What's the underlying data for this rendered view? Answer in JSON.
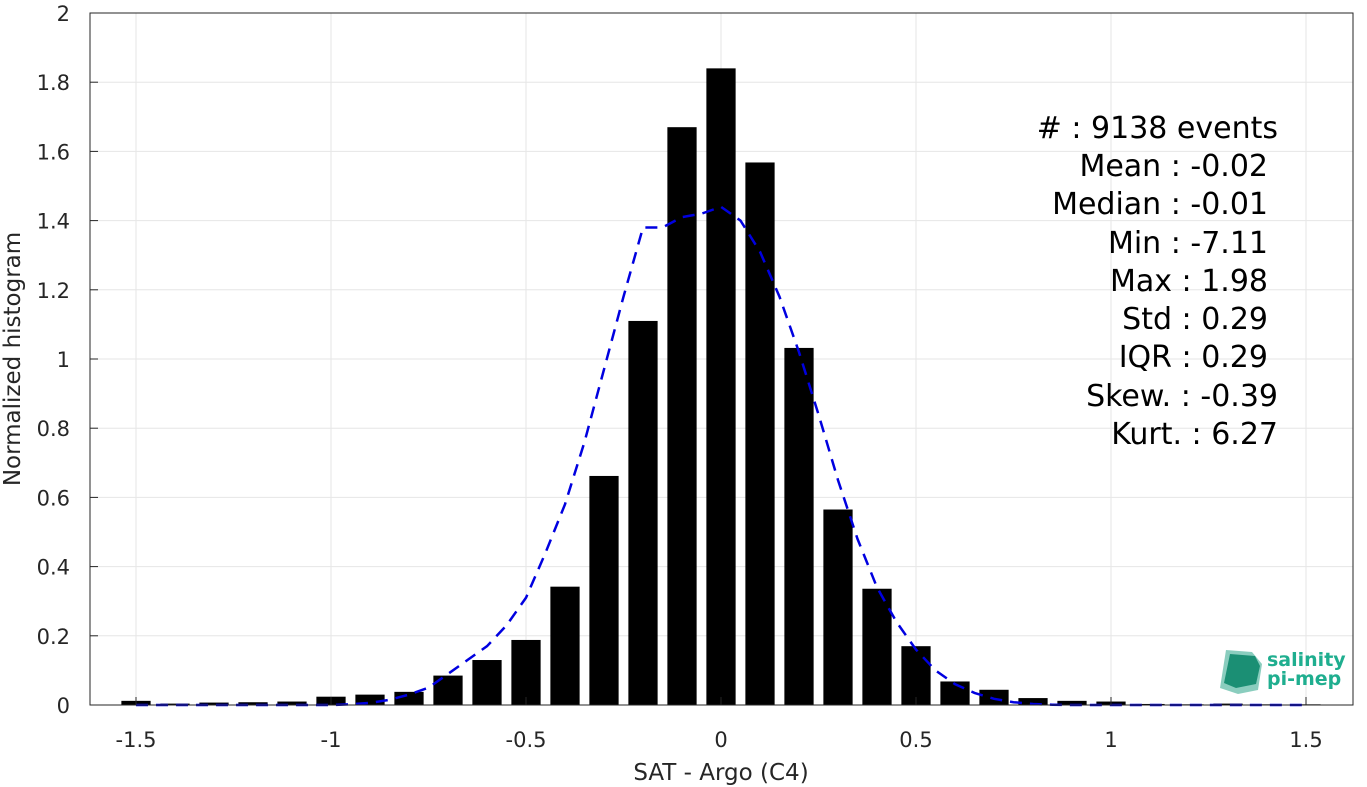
{
  "chart_data": {
    "type": "bar",
    "xlabel": "SAT - Argo (C4)",
    "ylabel": "Normalized histogram",
    "xlim": [
      -1.6,
      1.6
    ],
    "ylim": [
      0,
      2
    ],
    "x_ticks": [
      -1.5,
      -1,
      -0.5,
      0,
      0.5,
      1,
      1.5
    ],
    "x_tick_labels": [
      "-1.5",
      "-1",
      "-0.5",
      "0",
      "0.5",
      "1",
      "1.5"
    ],
    "y_ticks": [
      0,
      0.2,
      0.4,
      0.6,
      0.8,
      1,
      1.2,
      1.4,
      1.6,
      1.8,
      2
    ],
    "y_tick_labels": [
      "0",
      "0.2",
      "0.4",
      "0.6",
      "0.8",
      "1",
      "1.2",
      "1.4",
      "1.6",
      "1.8",
      "2"
    ],
    "grid": true,
    "bar_color": "#000000",
    "bar_width": 0.075,
    "bins": {
      "x": [
        -1.5,
        -1.4,
        -1.3,
        -1.2,
        -1.1,
        -1.0,
        -0.9,
        -0.8,
        -0.7,
        -0.6,
        -0.5,
        -0.4,
        -0.3,
        -0.2,
        -0.1,
        0.0,
        0.1,
        0.2,
        0.3,
        0.4,
        0.5,
        0.6,
        0.7,
        0.8,
        0.9,
        1.0,
        1.1,
        1.2,
        1.3,
        1.4,
        1.5
      ],
      "values": [
        0.012,
        0.004,
        0.007,
        0.008,
        0.01,
        0.024,
        0.03,
        0.038,
        0.085,
        0.13,
        0.188,
        0.342,
        0.662,
        1.11,
        1.67,
        1.84,
        1.568,
        1.032,
        0.565,
        0.336,
        0.17,
        0.068,
        0.044,
        0.02,
        0.012,
        0.01,
        0.003,
        0.002,
        0.004,
        0.002,
        0.002
      ]
    },
    "fit_curve": {
      "style": "dashed",
      "color": "#0000e0",
      "x": [
        -1.5,
        -1.45,
        -1.4,
        -1.35,
        -1.3,
        -1.25,
        -1.2,
        -1.15,
        -1.1,
        -1.05,
        -1.0,
        -0.95,
        -0.9,
        -0.85,
        -0.8,
        -0.75,
        -0.7,
        -0.65,
        -0.6,
        -0.55,
        -0.5,
        -0.45,
        -0.4,
        -0.35,
        -0.3,
        -0.25,
        -0.2,
        -0.15,
        -0.1,
        -0.05,
        0.0,
        0.05,
        0.1,
        0.15,
        0.2,
        0.25,
        0.3,
        0.35,
        0.4,
        0.45,
        0.5,
        0.55,
        0.6,
        0.65,
        0.7,
        0.75,
        0.8,
        0.85,
        0.9,
        0.95,
        1.0,
        1.05,
        1.1,
        1.15,
        1.2,
        1.25,
        1.3,
        1.35,
        1.4,
        1.45,
        1.5
      ],
      "y": [
        0.0,
        0.0,
        0.0,
        0.0,
        0.0,
        0.0,
        0.0,
        0.0,
        0.0,
        0.0,
        0.0,
        0.002,
        0.006,
        0.015,
        0.03,
        0.05,
        0.09,
        0.13,
        0.17,
        0.23,
        0.31,
        0.44,
        0.58,
        0.76,
        0.97,
        1.18,
        1.38,
        1.38,
        1.41,
        1.42,
        1.44,
        1.4,
        1.31,
        1.18,
        1.02,
        0.84,
        0.65,
        0.48,
        0.34,
        0.24,
        0.16,
        0.1,
        0.06,
        0.035,
        0.018,
        0.008,
        0.003,
        0.001,
        0.0,
        0.0,
        0.0,
        0.0,
        0.0,
        0.0,
        0.0,
        0.0,
        0.0,
        0.0,
        0.0,
        0.0,
        0.0
      ]
    },
    "annotations": [
      "#  : 9138 events",
      "Mean : -0.02",
      "Median : -0.01",
      "Min : -7.11",
      "Max : 1.98",
      "Std : 0.29",
      "IQR : 0.29",
      "Skew. : -0.39",
      "Kurt. : 6.27"
    ]
  },
  "logo": {
    "line1": "salinity",
    "line2": "pi-mep",
    "color": "#1fae8f"
  }
}
